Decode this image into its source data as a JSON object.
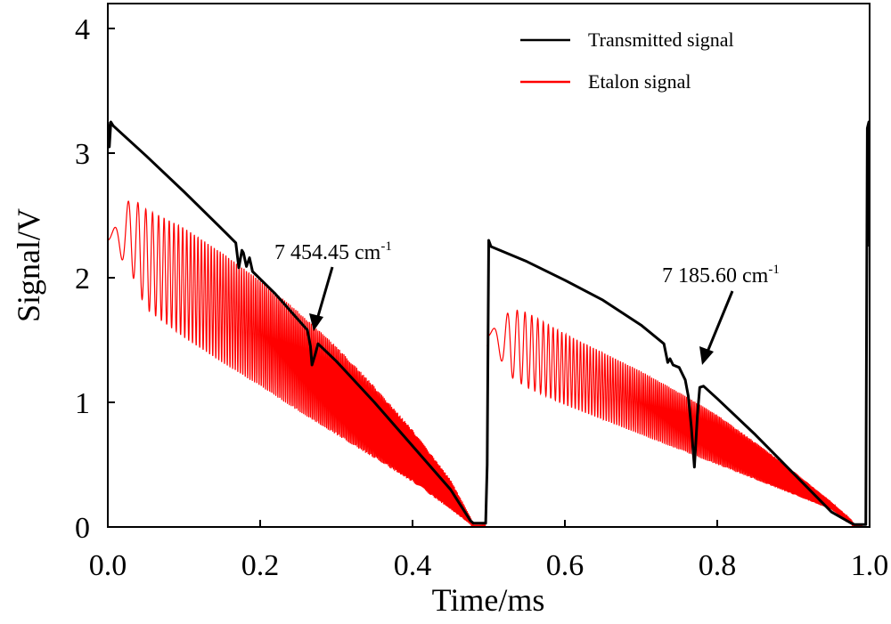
{
  "chart_data": {
    "type": "line",
    "xlabel": "Time/ms",
    "ylabel": "Signal/V",
    "xlim": [
      0,
      1.0
    ],
    "ylim": [
      0,
      4.2
    ],
    "x_ticks": [
      0.0,
      0.2,
      0.4,
      0.6,
      0.8,
      1.0
    ],
    "x_tick_labels": [
      "0.0",
      "0.2",
      "0.4",
      "0.6",
      "0.8",
      "1.0"
    ],
    "y_ticks": [
      0,
      1,
      2,
      3,
      4
    ],
    "y_tick_labels": [
      "0",
      "1",
      "2",
      "3",
      "4"
    ],
    "grid": false,
    "legend_position": "top-right",
    "series": [
      {
        "name": "Transmitted signal",
        "color": "#000000",
        "x": [
          0.0,
          0.002,
          0.004,
          0.007,
          0.05,
          0.1,
          0.15,
          0.168,
          0.172,
          0.176,
          0.178,
          0.182,
          0.186,
          0.19,
          0.22,
          0.262,
          0.266,
          0.268,
          0.272,
          0.276,
          0.3,
          0.35,
          0.4,
          0.45,
          0.476,
          0.48,
          0.496,
          0.498,
          0.5,
          0.503,
          0.55,
          0.6,
          0.65,
          0.7,
          0.73,
          0.735,
          0.738,
          0.742,
          0.75,
          0.758,
          0.762,
          0.766,
          0.77,
          0.774,
          0.777,
          0.782,
          0.8,
          0.85,
          0.9,
          0.95,
          0.976,
          0.98,
          0.995,
          0.997,
          0.999,
          1.0
        ],
        "y": [
          3.25,
          3.05,
          3.25,
          3.22,
          2.98,
          2.69,
          2.39,
          2.28,
          2.08,
          2.22,
          2.2,
          2.09,
          2.16,
          2.05,
          1.87,
          1.58,
          1.45,
          1.3,
          1.38,
          1.47,
          1.33,
          1.0,
          0.65,
          0.3,
          0.05,
          0.03,
          0.03,
          0.5,
          2.3,
          2.25,
          2.13,
          1.98,
          1.82,
          1.62,
          1.47,
          1.32,
          1.35,
          1.3,
          1.28,
          1.18,
          1.05,
          0.8,
          0.48,
          0.9,
          1.12,
          1.13,
          1.03,
          0.74,
          0.43,
          0.12,
          0.03,
          0.02,
          0.02,
          3.2,
          3.25,
          2.25
        ]
      },
      {
        "name": "Etalon signal",
        "color": "#ff0000",
        "x": [
          0.0,
          0.03,
          0.05,
          0.1,
          0.15,
          0.2,
          0.25,
          0.3,
          0.35,
          0.4,
          0.45,
          0.476,
          0.48,
          0.496,
          0.498,
          0.5,
          0.53,
          0.55,
          0.6,
          0.65,
          0.7,
          0.75,
          0.8,
          0.85,
          0.9,
          0.95,
          0.976,
          0.98,
          0.99
        ],
        "y_upper": [
          2.3,
          2.65,
          2.55,
          2.4,
          2.2,
          1.98,
          1.73,
          1.45,
          1.13,
          0.78,
          0.38,
          0.08,
          0.02,
          0.02,
          1.45,
          1.55,
          1.75,
          1.72,
          1.55,
          1.4,
          1.25,
          1.08,
          0.9,
          0.68,
          0.45,
          0.2,
          0.06,
          0.02,
          0.02
        ],
        "y_lower": [
          2.3,
          2.05,
          1.75,
          1.52,
          1.32,
          1.13,
          0.93,
          0.74,
          0.55,
          0.36,
          0.14,
          0.02,
          -0.03,
          -0.03,
          1.45,
          1.5,
          1.2,
          1.12,
          0.98,
          0.86,
          0.74,
          0.62,
          0.5,
          0.38,
          0.26,
          0.14,
          0.02,
          -0.02,
          -0.02
        ]
      }
    ],
    "annotations": [
      {
        "text": "7 454.45 cm",
        "sup": "-1",
        "x": 0.268,
        "y": 1.38
      },
      {
        "text": "7 185.60 cm",
        "sup": "-1",
        "x": 0.776,
        "y": 1.28
      }
    ]
  }
}
